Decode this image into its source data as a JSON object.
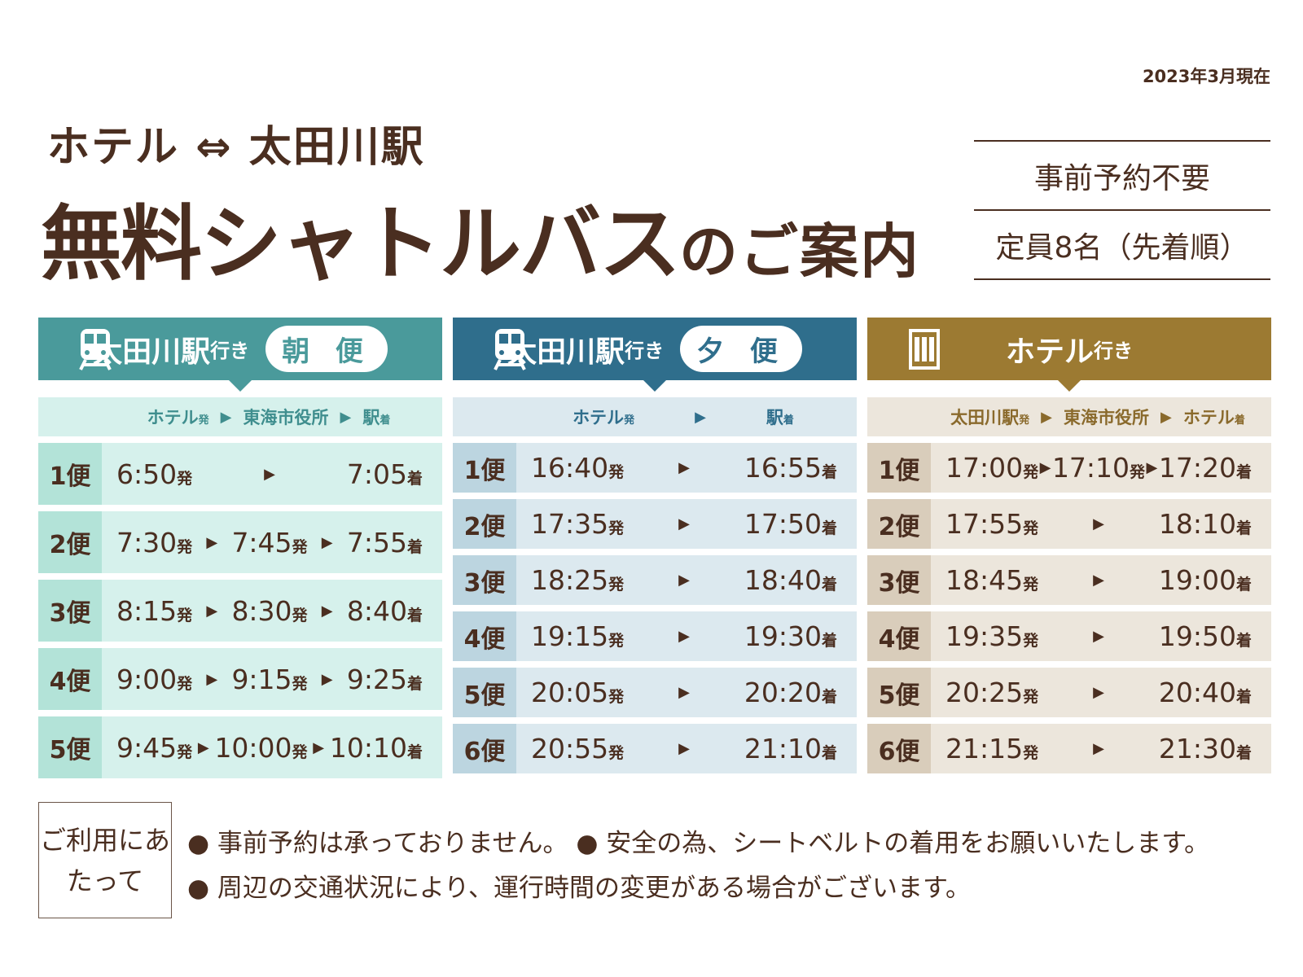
{
  "date": "2023年3月現在",
  "subtitle": "ホテル ⇔ 太田川駅",
  "title_main": "無料シャトルバス",
  "title_small": "のご案内",
  "info": [
    "事前予約不要",
    "定員8名（先着順）"
  ],
  "colors": {
    "morning": "#4a9a9b",
    "evening": "#2f6e8c",
    "hotel": "#9c7a32",
    "text": "#4a2e20"
  },
  "tables": [
    {
      "dest": "太田川駅",
      "suffix": "行き",
      "badge": "朝 便",
      "icon": "train-icon",
      "stops": [
        {
          "n": "ホテル",
          "s": "発"
        },
        {
          "n": "東海市役所",
          "s": ""
        },
        {
          "n": "駅",
          "s": "着"
        }
      ],
      "rows": [
        {
          "slot": "1便",
          "a": "6:50",
          "b": "",
          "c": "7:05"
        },
        {
          "slot": "2便",
          "a": "7:30",
          "b": "7:45",
          "c": "7:55"
        },
        {
          "slot": "3便",
          "a": "8:15",
          "b": "8:30",
          "c": "8:40"
        },
        {
          "slot": "4便",
          "a": "9:00",
          "b": "9:15",
          "c": "9:25"
        },
        {
          "slot": "5便",
          "a": "9:45",
          "b": "10:00",
          "c": "10:10"
        }
      ]
    },
    {
      "dest": "太田川駅",
      "suffix": "行き",
      "badge": "夕 便",
      "icon": "train-icon",
      "stops": [
        {
          "n": "ホテル",
          "s": "発"
        },
        {
          "n": "駅",
          "s": "着"
        }
      ],
      "rows": [
        {
          "slot": "1便",
          "a": "16:40",
          "c": "16:55"
        },
        {
          "slot": "2便",
          "a": "17:35",
          "c": "17:50"
        },
        {
          "slot": "3便",
          "a": "18:25",
          "c": "18:40"
        },
        {
          "slot": "4便",
          "a": "19:15",
          "c": "19:30"
        },
        {
          "slot": "5便",
          "a": "20:05",
          "c": "20:20"
        },
        {
          "slot": "6便",
          "a": "20:55",
          "c": "21:10"
        }
      ]
    },
    {
      "dest": "ホテル",
      "suffix": "行き",
      "badge": "",
      "icon": "hotel-building-icon",
      "stops": [
        {
          "n": "太田川駅",
          "s": "発"
        },
        {
          "n": "東海市役所",
          "s": ""
        },
        {
          "n": "ホテル",
          "s": "着"
        }
      ],
      "rows": [
        {
          "slot": "1便",
          "a": "17:00",
          "b": "17:10",
          "c": "17:20"
        },
        {
          "slot": "2便",
          "a": "17:55",
          "b": "",
          "c": "18:10"
        },
        {
          "slot": "3便",
          "a": "18:45",
          "b": "",
          "c": "19:00"
        },
        {
          "slot": "4便",
          "a": "19:35",
          "b": "",
          "c": "19:50"
        },
        {
          "slot": "5便",
          "a": "20:25",
          "b": "",
          "c": "20:40"
        },
        {
          "slot": "6便",
          "a": "21:15",
          "b": "",
          "c": "21:30"
        }
      ]
    }
  ],
  "dep": "発",
  "arr": "着",
  "notes_label": "ご利用にあたって",
  "notes": [
    "● 事前予約は承っておりません。 ● 安全の為、シートベルトの着用をお願いいたします。",
    "● 周辺の交通状況により、運行時間の変更がある場合がございます。"
  ]
}
